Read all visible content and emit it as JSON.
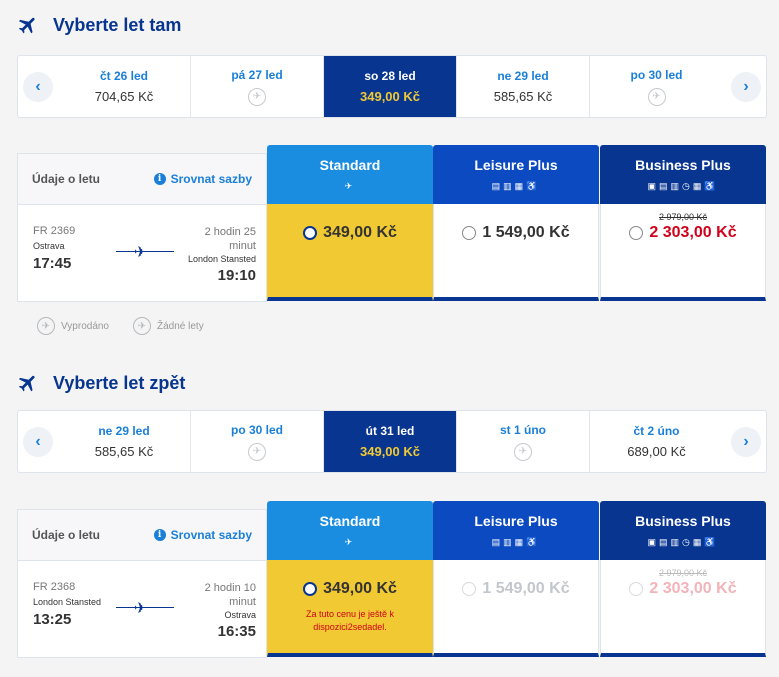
{
  "outbound": {
    "title": "Vyberte let tam",
    "dates": [
      {
        "day": "čt 26 led",
        "price": "704,65 Kč"
      },
      {
        "day": "pá 27 led",
        "price": ""
      },
      {
        "day": "so 28 led",
        "price": "349,00 Kč"
      },
      {
        "day": "ne 29 led",
        "price": "585,65 Kč"
      },
      {
        "day": "po 30 led",
        "price": ""
      }
    ],
    "info_label": "Údaje o letu",
    "compare_label": "Srovnat sazby",
    "flight": {
      "number": "FR 2369",
      "from": "Ostrava",
      "dep": "17:45",
      "duration": "2 hodin 25 minut",
      "to": "London Stansted",
      "arr": "19:10"
    },
    "fares": {
      "standard": {
        "name": "Standard",
        "price": "349,00 Kč"
      },
      "leisure": {
        "name": "Leisure Plus",
        "price": "1 549,00 Kč"
      },
      "business": {
        "name": "Business Plus",
        "old_price": "2 979,00 Kč",
        "price": "2 303,00 Kč"
      }
    }
  },
  "legend": {
    "sold_out": "Vyprodáno",
    "no_flights": "Žádné lety"
  },
  "inbound": {
    "title": "Vyberte let zpět",
    "dates": [
      {
        "day": "ne 29 led",
        "price": "585,65 Kč"
      },
      {
        "day": "po 30 led",
        "price": ""
      },
      {
        "day": "út 31 led",
        "price": "349,00 Kč"
      },
      {
        "day": "st 1 úno",
        "price": ""
      },
      {
        "day": "čt 2 úno",
        "price": "689,00 Kč"
      }
    ],
    "info_label": "Údaje o letu",
    "compare_label": "Srovnat sazby",
    "flight": {
      "number": "FR 2368",
      "from": "London Stansted",
      "dep": "13:25",
      "duration": "2 hodin 10 minut",
      "to": "Ostrava",
      "arr": "16:35"
    },
    "fares": {
      "standard": {
        "name": "Standard",
        "price": "349,00 Kč",
        "note": "Za tuto cenu je ještě k dispozici2sedadel."
      },
      "leisure": {
        "name": "Leisure Plus",
        "price": "1 549,00 Kč"
      },
      "business": {
        "name": "Business Plus",
        "old_price": "2 979,00 Kč",
        "price": "2 303,00 Kč"
      }
    }
  },
  "icons": {
    "plane": "plane-icon",
    "no_flight": "no-flight-icon",
    "info": "info-icon",
    "chevron_left": "chevron-left-icon",
    "chevron_right": "chevron-right-icon"
  },
  "colors": {
    "navy": "#073590",
    "blue": "#1a8de0",
    "yellow": "#f1c933",
    "red": "#d0021b"
  }
}
